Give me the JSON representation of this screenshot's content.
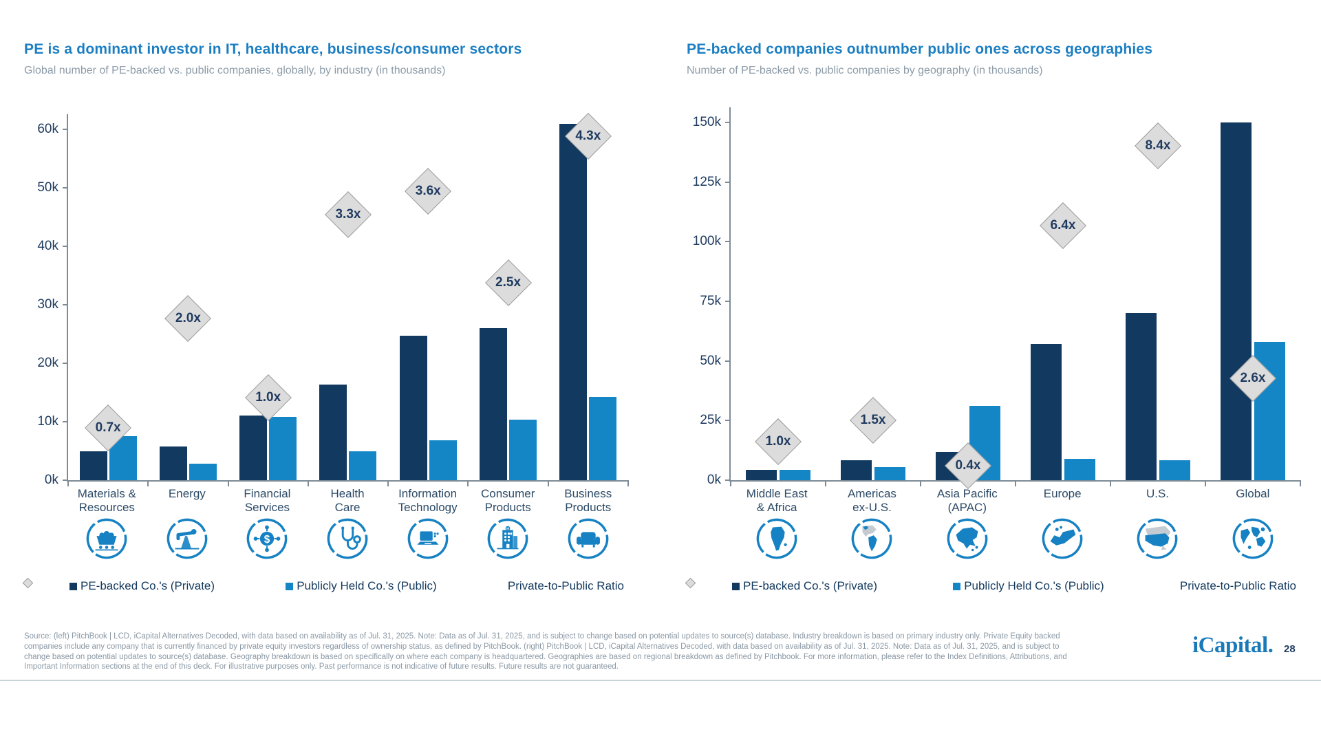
{
  "page": {
    "number": "28",
    "logo_text": "iCapital."
  },
  "colors": {
    "title_blue": "#1B7EC2",
    "subtitle_gray": "#8D9CA8",
    "private_navy": "#12395F",
    "public_blue": "#1486C6",
    "ratio_diamond_fill": "#DCDCDC",
    "ratio_diamond_border": "#9E9E9E",
    "axis_gray": "#7E8B96",
    "icon_blue": "#1682C3"
  },
  "legend": {
    "private": "PE-backed Co.'s (Private)",
    "public": "Publicly Held Co.'s (Public)",
    "ratio": "Private-to-Public Ratio"
  },
  "chart_data": [
    {
      "type": "bar",
      "title": "PE is a dominant investor in IT, healthcare, business/consumer sectors",
      "subtitle": "Global number of PE-backed vs. public companies, globally, by industry (in thousands)",
      "categories": [
        "Materials & Resources",
        "Energy",
        "Financial Services",
        "Health Care",
        "Information Technology",
        "Consumer Products",
        "Business Products"
      ],
      "category_lines": [
        [
          "Materials &",
          "Resources"
        ],
        [
          "Energy"
        ],
        [
          "Financial",
          "Services"
        ],
        [
          "Health",
          "Care"
        ],
        [
          "Information",
          "Technology"
        ],
        [
          "Consumer",
          "Products"
        ],
        [
          "Business",
          "Products"
        ]
      ],
      "icons": [
        "mining-cart",
        "oil-pump",
        "dollar-network",
        "stethoscope",
        "laptop",
        "building",
        "sofa"
      ],
      "series": [
        {
          "name": "PE-backed Co.'s (Private)",
          "values": [
            5.0,
            5.8,
            11.1,
            16.4,
            24.7,
            26.0,
            61.0
          ]
        },
        {
          "name": "Publicly Held Co.'s (Public)",
          "values": [
            7.5,
            2.8,
            10.8,
            4.9,
            6.8,
            10.4,
            14.2
          ]
        }
      ],
      "ratios": [
        "0.7x",
        "2.0x",
        "1.0x",
        "3.3x",
        "3.6x",
        "2.5x",
        "4.3x"
      ],
      "ratio_marker_heights_k": [
        9.0,
        27.6,
        14.1,
        45.4,
        49.4,
        33.8,
        58.8
      ],
      "xlabel": "",
      "ylabel": "",
      "ylim": [
        0,
        60
      ],
      "ytick_interval": 10,
      "yticks": [
        "0k",
        "10k",
        "20k",
        "30k",
        "40k",
        "50k",
        "60k"
      ],
      "grid": false,
      "legend_position": "bottom"
    },
    {
      "type": "bar",
      "title": "PE-backed companies outnumber public ones across geographies",
      "subtitle": "Number of PE-backed vs. public companies by geography (in thousands)",
      "categories": [
        "Middle East & Africa",
        "Americas ex-U.S.",
        "Asia Pacific (APAC)",
        "Europe",
        "U.S.",
        "Global"
      ],
      "category_lines": [
        [
          "Middle East",
          "& Africa"
        ],
        [
          "Americas",
          "ex-U.S."
        ],
        [
          "Asia Pacific",
          "(APAC)"
        ],
        [
          "Europe"
        ],
        [
          "U.S."
        ],
        [
          "Global"
        ]
      ],
      "icons": [
        "africa-map",
        "americas-map",
        "asia-map",
        "europe-map",
        "us-map",
        "world-map"
      ],
      "series": [
        {
          "name": "PE-backed Co.'s (Private)",
          "values": [
            4.3,
            8.3,
            11.7,
            57.0,
            70.0,
            150.0
          ]
        },
        {
          "name": "Publicly Held Co.'s (Public)",
          "values": [
            4.2,
            5.6,
            31.3,
            8.9,
            8.3,
            58.0
          ]
        }
      ],
      "ratios": [
        "1.0x",
        "1.5x",
        "0.4x",
        "6.4x",
        "8.4x",
        "2.6x"
      ],
      "ratio_marker_heights_k": [
        16.2,
        25.0,
        6.0,
        106.7,
        140.1,
        42.6
      ],
      "xlabel": "",
      "ylabel": "",
      "ylim": [
        0,
        150
      ],
      "ytick_interval": 25,
      "yticks": [
        "0k",
        "25k",
        "50k",
        "75k",
        "100k",
        "125k",
        "150k"
      ],
      "grid": false,
      "legend_position": "bottom"
    }
  ],
  "footer": {
    "lines": [
      "Source: (left) PitchBook | LCD, iCapital Alternatives Decoded, with data based on availability as of Jul. 31, 2025. Note: Data as of Jul. 31, 2025, and is subject to change based on potential updates to source(s) database. Industry breakdown is based on primary industry only. Private Equity backed",
      "companies include any company that is currently financed by private equity investors regardless of ownership status, as defined by PitchBook. (right) PitchBook | LCD, iCapital Alternatives Decoded, with data based on availability as of Jul. 31, 2025. Note: Data as of Jul. 31, 2025, and is subject to",
      "change based on potential updates to source(s) database. Geography breakdown is based on specifically on where each company is headquartered. Geographies are based on regional breakdown as defined by Pitchbook. For more information, please refer to the Index Definitions, Attributions, and",
      "Important Information sections at the end of this deck. For illustrative purposes only. Past performance is not indicative of future results. Future results are not guaranteed."
    ]
  }
}
